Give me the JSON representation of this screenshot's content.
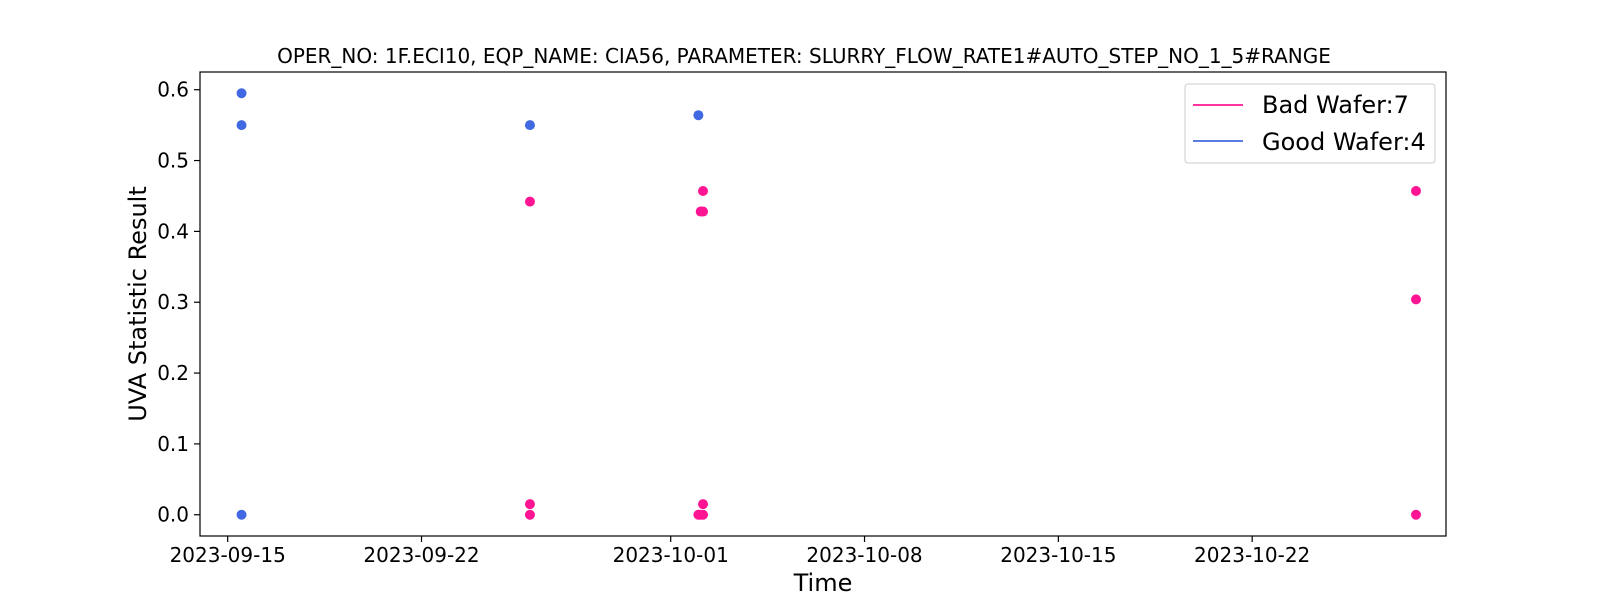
{
  "chart_data": {
    "type": "scatter",
    "title": "OPER_NO: 1F.ECI10,  EQP_NAME: CIA56,  PARAMETER: SLURRY_FLOW_RATE1#AUTO_STEP_NO_1_5#RANGE",
    "xlabel": "Time",
    "ylabel": "UVA Statistic Result",
    "x_axis_type": "date",
    "xlim": [
      "2023-09-14",
      "2023-10-29"
    ],
    "ylim": [
      -0.03,
      0.625
    ],
    "x_ticks": [
      "2023-09-15",
      "2023-09-22",
      "2023-10-01",
      "2023-10-08",
      "2023-10-15",
      "2023-10-22"
    ],
    "y_ticks": [
      0.0,
      0.1,
      0.2,
      0.3,
      0.4,
      0.5,
      0.6
    ],
    "y_tick_labels": [
      "0.0",
      "0.1",
      "0.2",
      "0.3",
      "0.4",
      "0.5",
      "0.6"
    ],
    "grid": false,
    "legend_position": "top-right",
    "series": [
      {
        "name": "Bad Wafer:7",
        "color": "#ff1493",
        "points": [
          {
            "x": "2023-09-25 22:00",
            "y": 0.442
          },
          {
            "x": "2023-09-25 22:00",
            "y": 0.015
          },
          {
            "x": "2023-09-25 22:00",
            "y": 0.0
          },
          {
            "x": "2023-10-02 04:00",
            "y": 0.457
          },
          {
            "x": "2023-10-02 02:00",
            "y": 0.428
          },
          {
            "x": "2023-10-02 04:00",
            "y": 0.428
          },
          {
            "x": "2023-10-02 04:00",
            "y": 0.015
          },
          {
            "x": "2023-10-02 00:00",
            "y": 0.0
          },
          {
            "x": "2023-10-02 02:00",
            "y": 0.0
          },
          {
            "x": "2023-10-02 04:00",
            "y": 0.0
          },
          {
            "x": "2023-10-27 22:00",
            "y": 0.457
          },
          {
            "x": "2023-10-27 22:00",
            "y": 0.304
          },
          {
            "x": "2023-10-27 22:00",
            "y": 0.0
          }
        ]
      },
      {
        "name": "Good Wafer:4",
        "color": "#4169e1",
        "points": [
          {
            "x": "2023-09-15 12:00",
            "y": 0.595
          },
          {
            "x": "2023-09-15 12:00",
            "y": 0.55
          },
          {
            "x": "2023-09-15 12:00",
            "y": 0.0
          },
          {
            "x": "2023-09-25 22:00",
            "y": 0.55
          },
          {
            "x": "2023-10-02 00:00",
            "y": 0.564
          }
        ]
      }
    ]
  }
}
